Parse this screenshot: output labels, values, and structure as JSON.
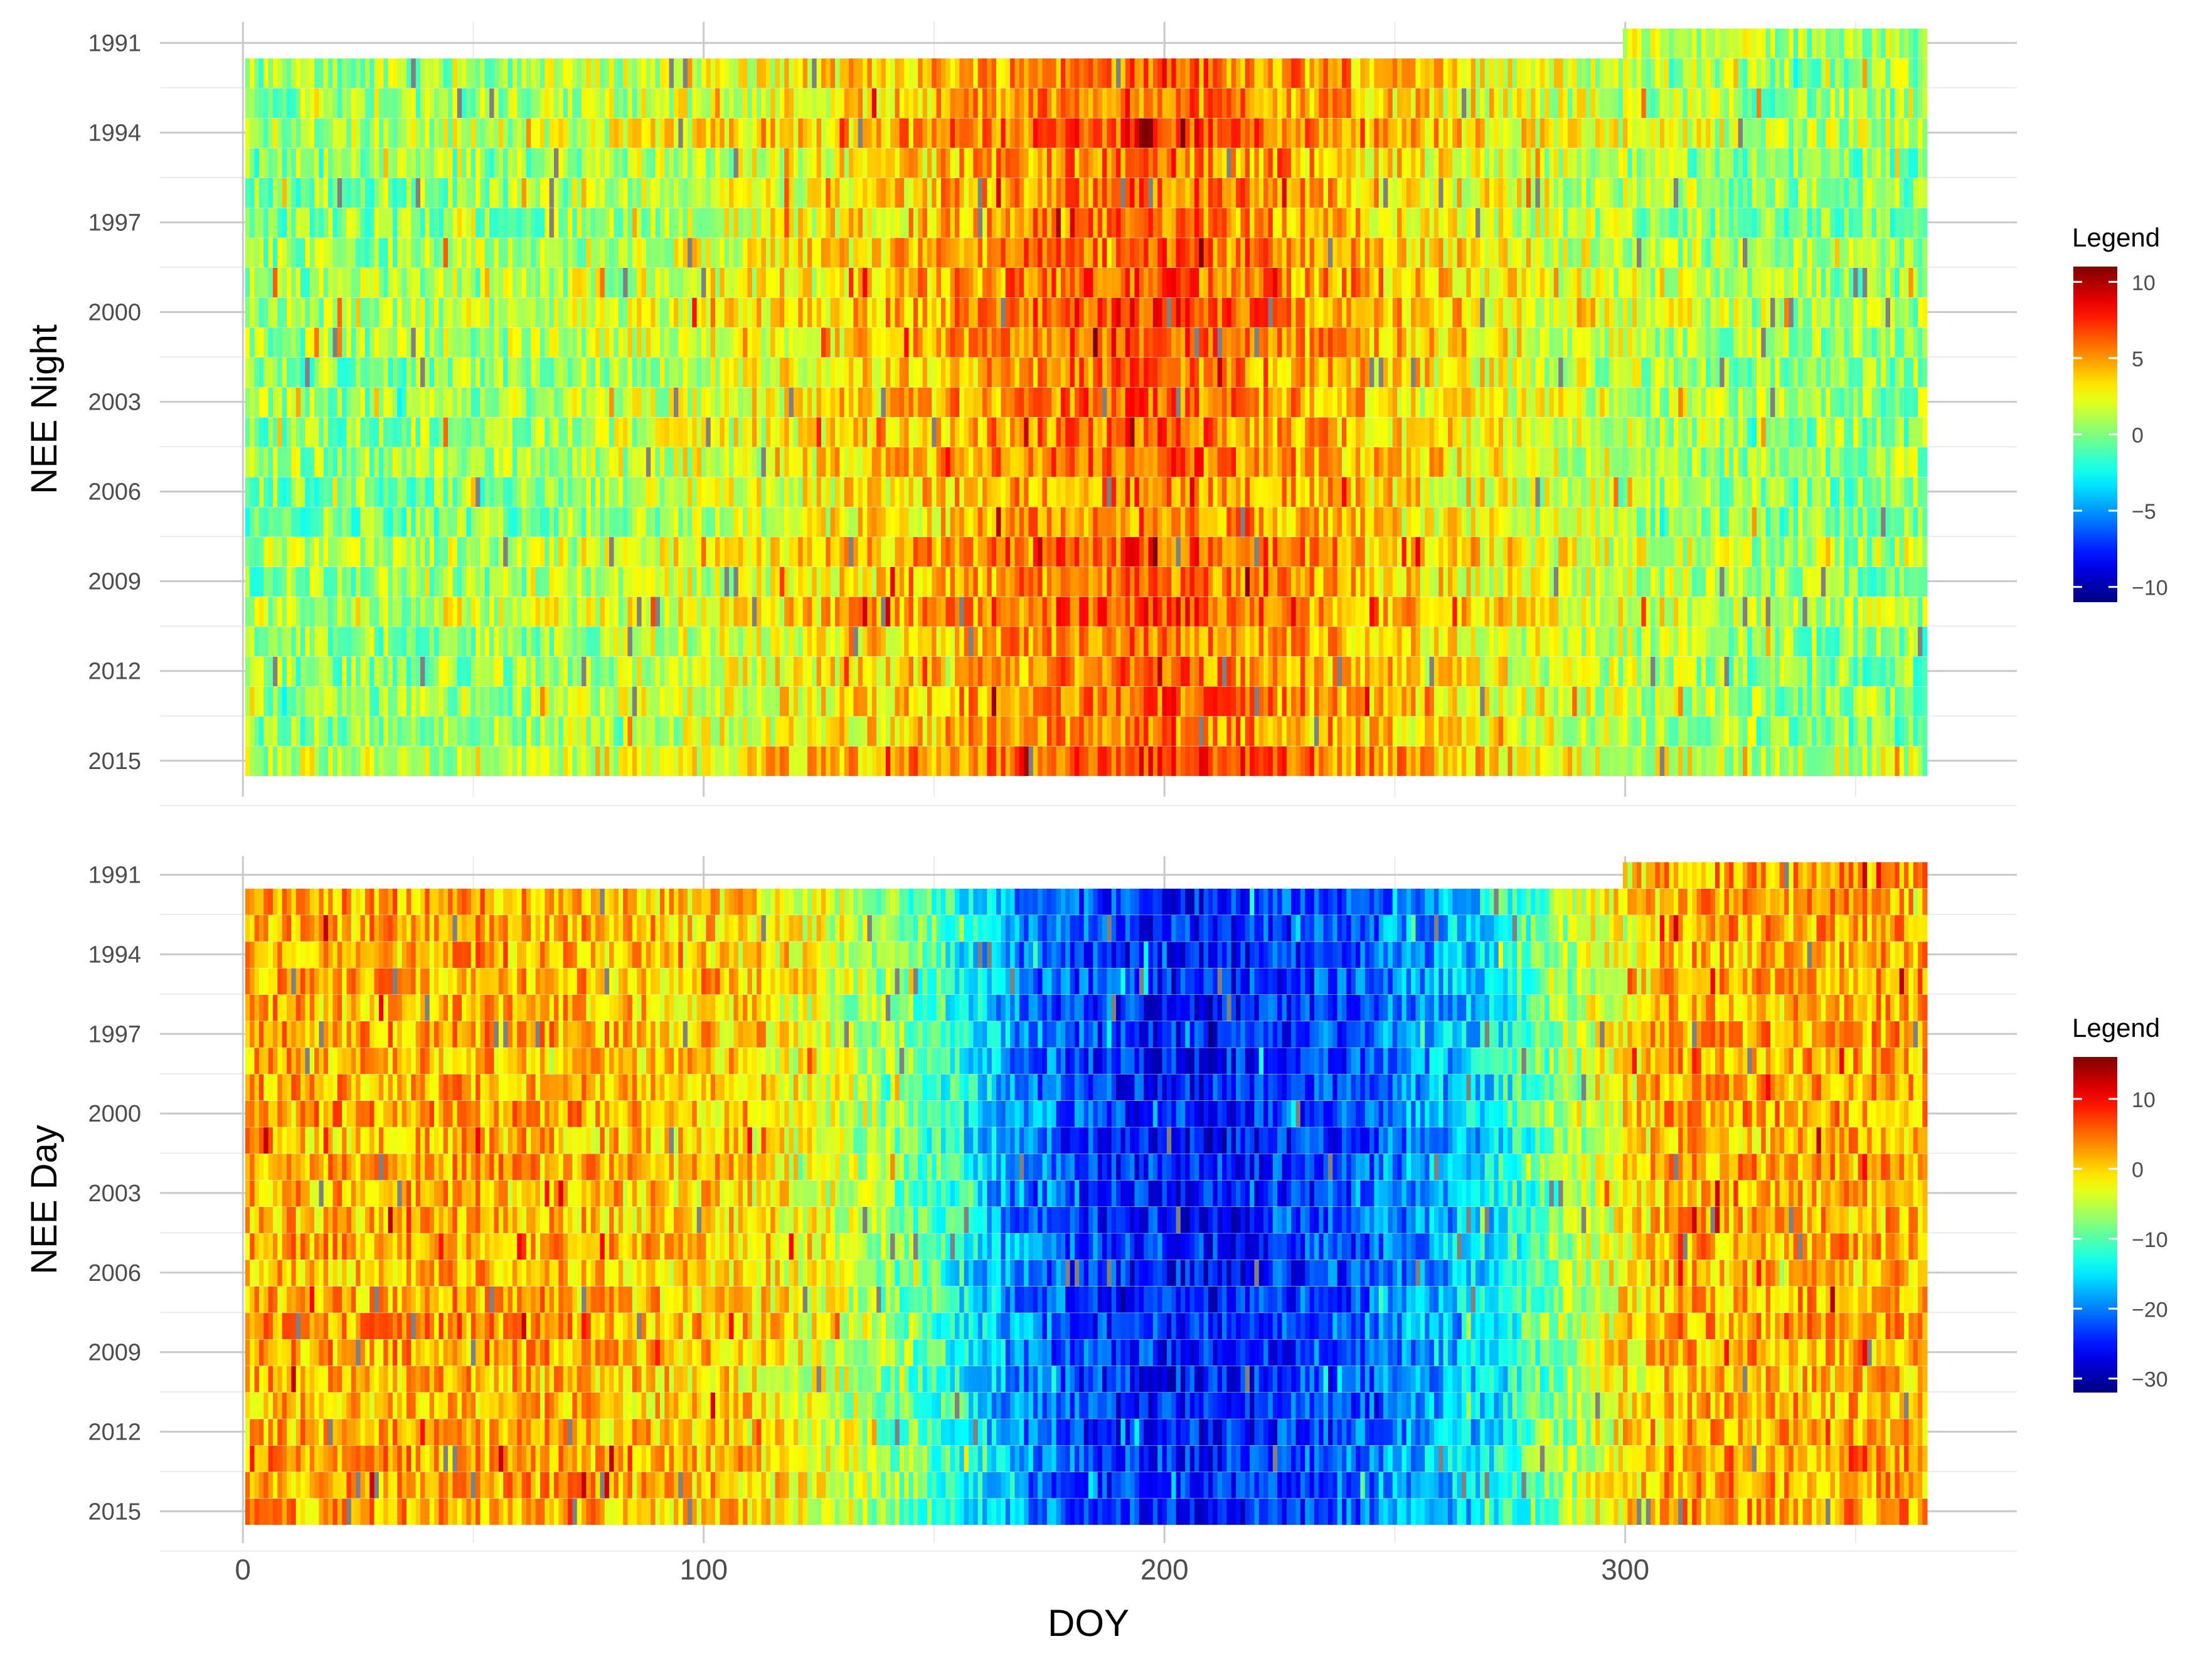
{
  "figure": {
    "xlabel": "DOY",
    "x_ticks": [
      0,
      100,
      200,
      300
    ]
  },
  "chart_data": [
    {
      "type": "heatmap",
      "title": "",
      "xlabel": "DOY",
      "ylabel": "NEE Night",
      "xlim": [
        -18,
        385
      ],
      "ylim": [
        1990.3,
        2016.2
      ],
      "x_ticks": [
        0,
        100,
        200,
        300
      ],
      "y_ticks": [
        1991,
        1994,
        1997,
        2000,
        2003,
        2006,
        2009,
        2012,
        2015
      ],
      "years": [
        1991,
        1992,
        1993,
        1994,
        1995,
        1996,
        1997,
        1998,
        1999,
        2000,
        2001,
        2002,
        2003,
        2004,
        2005,
        2006,
        2007,
        2008,
        2009,
        2010,
        2011,
        2012,
        2013,
        2014,
        2015
      ],
      "first_year_start_doy": 300,
      "last_doy": 365,
      "seasonal_profile_doy": [
        1,
        60,
        110,
        140,
        170,
        200,
        230,
        260,
        300,
        330,
        365
      ],
      "seasonal_profile_value": [
        0.5,
        1.0,
        2.5,
        4.0,
        5.5,
        6.5,
        5.0,
        3.5,
        1.5,
        0.8,
        0.5
      ],
      "grid": true,
      "legend": {
        "title": "Legend",
        "position": "right",
        "min": -11,
        "max": 11,
        "ticks": [
          10,
          5,
          0,
          -5,
          -10
        ],
        "tick_labels": [
          "10",
          "5",
          "0",
          "−5",
          "−10"
        ]
      }
    },
    {
      "type": "heatmap",
      "title": "",
      "xlabel": "DOY",
      "ylabel": "NEE Day",
      "xlim": [
        -18,
        385
      ],
      "ylim": [
        1990.3,
        2016.2
      ],
      "x_ticks": [
        0,
        100,
        200,
        300
      ],
      "y_ticks": [
        1991,
        1994,
        1997,
        2000,
        2003,
        2006,
        2009,
        2012,
        2015
      ],
      "years": [
        1991,
        1992,
        1993,
        1994,
        1995,
        1996,
        1997,
        1998,
        1999,
        2000,
        2001,
        2002,
        2003,
        2004,
        2005,
        2006,
        2007,
        2008,
        2009,
        2010,
        2011,
        2012,
        2013,
        2014,
        2015
      ],
      "first_year_start_doy": 300,
      "last_doy": 365,
      "seasonal_profile_doy": [
        1,
        60,
        110,
        130,
        150,
        170,
        190,
        210,
        240,
        270,
        290,
        310,
        365
      ],
      "seasonal_profile_value": [
        2,
        2,
        0,
        -4,
        -10,
        -20,
        -24,
        -25,
        -22,
        -15,
        -5,
        2,
        2
      ],
      "grid": true,
      "legend": {
        "title": "Legend",
        "position": "right",
        "min": -32,
        "max": 16,
        "ticks": [
          10,
          0,
          -10,
          -20,
          -30
        ],
        "tick_labels": [
          "10",
          "0",
          "−10",
          "−20",
          "−30"
        ]
      }
    }
  ],
  "colors": {
    "jet_scale": [
      "#00007f",
      "#0000ff",
      "#007fff",
      "#00ffff",
      "#7fff7f",
      "#ffff00",
      "#ff7f00",
      "#ff0000",
      "#7f0000"
    ],
    "missing": "#808080",
    "grid_major": "#c9c9c9",
    "grid_minor": "#ebebeb",
    "tick_label": "#4d4d4d",
    "axis_title": "#000000"
  }
}
